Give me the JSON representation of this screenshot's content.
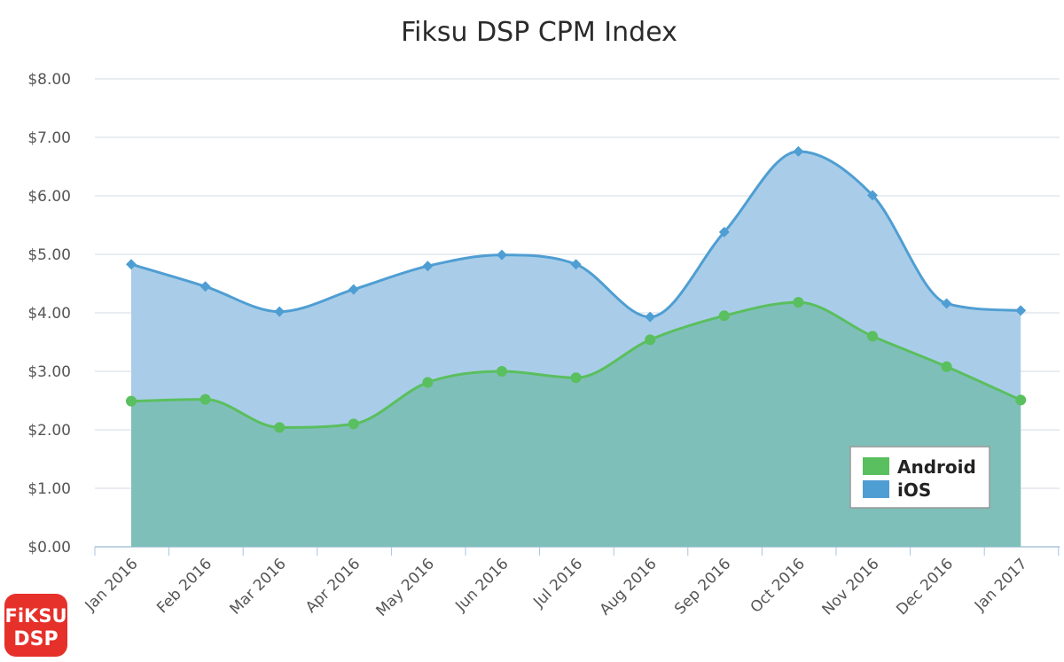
{
  "chart_data": {
    "type": "area",
    "title": "Fiksu DSP CPM Index",
    "xlabel": "",
    "ylabel": "",
    "categories": [
      "Jan 2016",
      "Feb 2016",
      "Mar 2016",
      "Apr 2016",
      "May 2016",
      "Jun 2016",
      "Jul 2016",
      "Aug 2016",
      "Sep 2016",
      "Oct 2016",
      "Nov 2016",
      "Dec 2016",
      "Jan 2017"
    ],
    "yticks": [
      "$0.00",
      "$1.00",
      "$2.00",
      "$3.00",
      "$4.00",
      "$5.00",
      "$6.00",
      "$7.00",
      "$8.00"
    ],
    "ylim": [
      0,
      8
    ],
    "grid": true,
    "legend_position": "bottom-right",
    "series": [
      {
        "name": "iOS",
        "color": "#4f9ed3",
        "fill": "#a9cde8",
        "marker": "diamond",
        "values": [
          4.83,
          4.45,
          4.02,
          4.4,
          4.8,
          4.99,
          4.83,
          3.93,
          5.38,
          6.76,
          6.01,
          4.16,
          4.04
        ]
      },
      {
        "name": "Android",
        "color": "#5abf5e",
        "fill": "#7fbfba",
        "marker": "circle",
        "values": [
          2.49,
          2.52,
          2.04,
          2.1,
          2.81,
          3.0,
          2.89,
          3.54,
          3.95,
          4.18,
          3.6,
          3.08,
          2.51
        ]
      }
    ]
  },
  "logo": {
    "line1": "FiKSU",
    "line2": "DSP",
    "color": "#e6302a"
  }
}
